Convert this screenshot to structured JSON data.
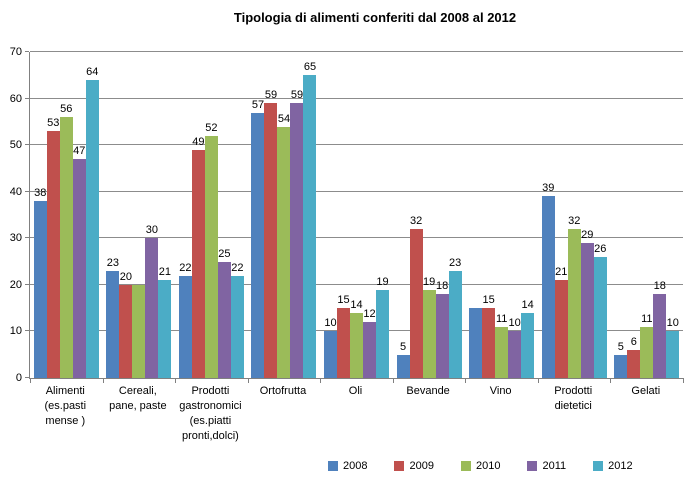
{
  "title": "Tipologia di alimenti conferiti dal 2008 al 2012",
  "chart_data": {
    "type": "bar",
    "title": "Tipologia di alimenti conferiti dal 2008 al 2012",
    "categories": [
      "Alimenti\n(es.pasti\nmense )",
      "Cereali,\npane, paste",
      "Prodotti\ngastronomici\n(es.piatti\npronti,dolci)",
      "Ortofrutta",
      "Oli",
      "Bevande",
      "Vino",
      "Prodotti\ndietetici",
      "Gelati"
    ],
    "series": [
      {
        "name": "2008",
        "color": "#4F81BD",
        "values": [
          38,
          23,
          22,
          57,
          10,
          5,
          15,
          39,
          5
        ]
      },
      {
        "name": "2009",
        "color": "#C0504D",
        "values": [
          53,
          20,
          49,
          59,
          15,
          32,
          15,
          21,
          6
        ]
      },
      {
        "name": "2010",
        "color": "#9BBB59",
        "values": [
          56,
          20,
          52,
          54,
          14,
          19,
          11,
          32,
          11
        ]
      },
      {
        "name": "2011",
        "color": "#8064A2",
        "values": [
          47,
          30,
          25,
          59,
          12,
          18,
          10,
          29,
          18
        ]
      },
      {
        "name": "2012",
        "color": "#4BACC6",
        "values": [
          64,
          21,
          22,
          65,
          19,
          23,
          14,
          26,
          10
        ]
      }
    ],
    "hidden_labels": [
      [
        0,
        6
      ],
      [
        2,
        1
      ]
    ],
    "xlabel": "",
    "ylabel": "",
    "ylim": [
      0,
      70
    ],
    "ytick_step": 10,
    "grid": true,
    "legend_position": "bottom-right",
    "gridline_color": "#8c8c8c",
    "axis_color": "#808080",
    "text_color": "#000000"
  }
}
